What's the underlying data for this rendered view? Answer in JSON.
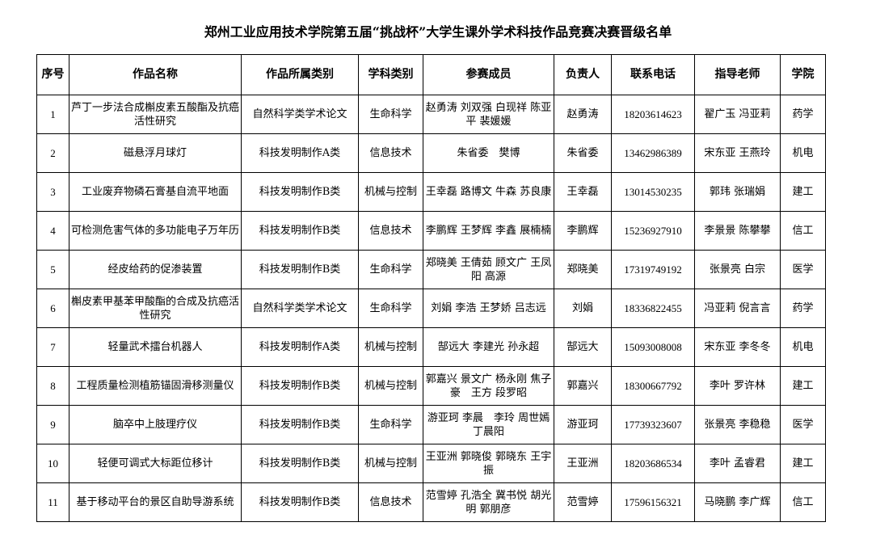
{
  "title": "郑州工业应用技术学院第五届“挑战杯”大学生课外学术科技作品竞赛决赛晋级名单",
  "headers": [
    "序号",
    "作品名称",
    "作品所属类别",
    "学科类别",
    "参赛成员",
    "负责人",
    "联系电话",
    "指导老师",
    "学院"
  ],
  "rows": [
    [
      "1",
      "芦丁一步法合成槲皮素五酸酯及抗癌活性研究",
      "自然科学类学术论文",
      "生命科学",
      "赵勇涛 刘双强 白现祥 陈亚平 裴媛媛",
      "赵勇涛",
      "18203614623",
      "翟广玉 冯亚莉",
      "药学"
    ],
    [
      "2",
      "磁悬浮月球灯",
      "科技发明制作A类",
      "信息技术",
      "朱省委　樊博",
      "朱省委",
      "13462986389",
      "宋东亚 王燕玲",
      "机电"
    ],
    [
      "3",
      "工业废弃物磷石膏基自流平地面",
      "科技发明制作B类",
      "机械与控制",
      "王幸磊 路博文 牛森 苏良康",
      "王幸磊",
      "13014530235",
      "郭玮 张瑞娟",
      "建工"
    ],
    [
      "4",
      "可检测危害气体的多功能电子万年历",
      "科技发明制作B类",
      "信息技术",
      "李鹏辉 王梦辉 李鑫 展楠楠",
      "李鹏辉",
      "15236927910",
      "李景景 陈攀攀",
      "信工"
    ],
    [
      "5",
      "经皮给药的促渗装置",
      "科技发明制作B类",
      "生命科学",
      "郑晓美 王倩茹 顾文广 王凤阳 高源",
      "郑晓美",
      "17319749192",
      "张景亮 白宗",
      "医学"
    ],
    [
      "6",
      "槲皮素甲基苯甲酸酯的合成及抗癌活性研究",
      "自然科学类学术论文",
      "生命科学",
      "刘娟 李浩 王梦娇 吕志远",
      "刘娟",
      "18336822455",
      "冯亚莉 倪言言",
      "药学"
    ],
    [
      "7",
      "轻量武术擂台机器人",
      "科技发明制作A类",
      "机械与控制",
      "郜远大 李建光 孙永超",
      "郜远大",
      "15093008008",
      "宋东亚 李冬冬",
      "机电"
    ],
    [
      "8",
      "工程质量检测植筋锚固滑移测量仪",
      "科技发明制作B类",
      "机械与控制",
      "郭嘉兴 景文广 杨永刚 焦子豪　王方 段罗昭",
      "郭嘉兴",
      "18300667792",
      "李叶 罗许林",
      "建工"
    ],
    [
      "9",
      "脑卒中上肢理疗仪",
      "科技发明制作B类",
      "生命科学",
      "游亚珂 李晨　李玲 周世嫣 丁晨阳",
      "游亚珂",
      "17739323607",
      "张景亮 李稳稳",
      "医学"
    ],
    [
      "10",
      "轻便可调式大标距位移计",
      "科技发明制作B类",
      "机械与控制",
      "王亚洲 郭晓俊 郭晓东 王宇振",
      "王亚洲",
      "18203686534",
      "李叶 孟睿君",
      "建工"
    ],
    [
      "11",
      "基于移动平台的景区自助导游系统",
      "科技发明制作B类",
      "信息技术",
      "范雪婷 孔浩全 冀书悦 胡光明 郭朋彦",
      "范雪婷",
      "17596156321",
      "马晓鹏 李广辉",
      "信工"
    ]
  ]
}
